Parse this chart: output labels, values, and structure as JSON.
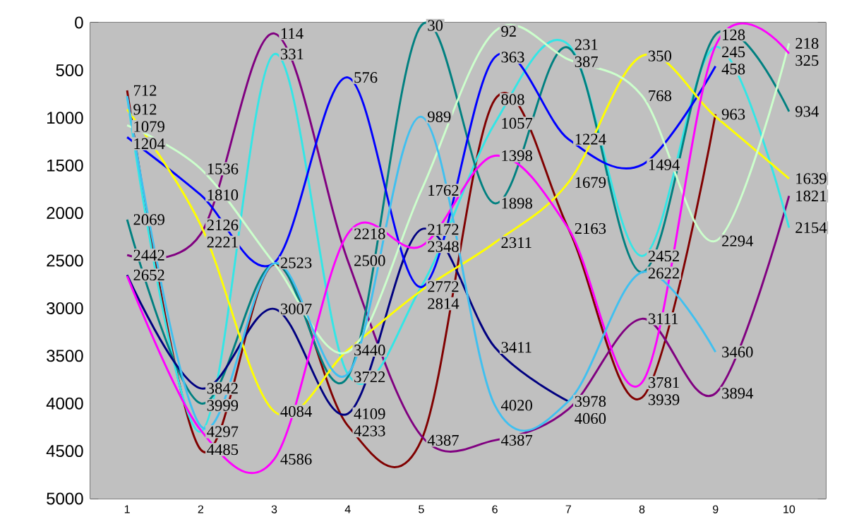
{
  "chart_data": {
    "type": "line",
    "categories": [
      "1",
      "2",
      "3",
      "4",
      "5",
      "6",
      "7",
      "8",
      "9",
      "10"
    ],
    "series": [
      {
        "color": "#800000",
        "values": [
          712,
          4485,
          2540,
          4233,
          4387,
          808,
          2163,
          3939,
          963,
          null
        ],
        "value_labels": [
          "712",
          "4485",
          null,
          "4233",
          "4387",
          "808",
          "2163",
          "3939",
          "963",
          null
        ]
      },
      {
        "color": "#800080",
        "values": [
          2442,
          2221,
          114,
          2500,
          4341,
          4387,
          4060,
          3111,
          3894,
          1821
        ],
        "value_labels": [
          "2442",
          "2221",
          "114",
          "2500",
          null,
          "4387",
          "4060",
          "3111",
          "3894",
          "1821"
        ]
      },
      {
        "color": "#33e6e6",
        "values": [
          778,
          4297,
          331,
          3691,
          2772,
          1057,
          231,
          2452,
          254,
          2154
        ],
        "value_labels": [
          null,
          "4297",
          "331",
          null,
          "2772",
          "1057",
          "231",
          "2452",
          null,
          "2154"
        ]
      },
      {
        "color": "#008080",
        "values": [
          2069,
          3999,
          2529,
          3722,
          30,
          1898,
          264,
          2622,
          128,
          934
        ],
        "value_labels": [
          "2069",
          "3999",
          null,
          "3722",
          "30",
          "1898",
          null,
          "2622",
          "128",
          "934"
        ]
      },
      {
        "color": "#000080",
        "values": [
          2652,
          3842,
          3007,
          4109,
          2172,
          3411,
          3978,
          null,
          null,
          null
        ],
        "value_labels": [
          "2652",
          "3842",
          "3007",
          "4109",
          "2172",
          "3411",
          "3978",
          null,
          null,
          null
        ]
      },
      {
        "color": "#0000ff",
        "values": [
          1204,
          1810,
          2523,
          576,
          2778,
          363,
          1224,
          1494,
          458,
          null
        ],
        "value_labels": [
          "1204",
          "1810",
          "2523",
          "576",
          null,
          "363",
          "1224",
          "1494",
          "458",
          null
        ]
      },
      {
        "color": "#ffff00",
        "values": [
          912,
          2126,
          4084,
          3440,
          2814,
          2311,
          1679,
          350,
          987,
          1639
        ],
        "value_labels": [
          "912",
          "2126",
          "4084",
          "3440",
          "2814",
          "2311",
          "1679",
          "350",
          null,
          "1639"
        ]
      },
      {
        "color": "#ccffcc",
        "values": [
          1079,
          1536,
          2529,
          3460,
          1762,
          92,
          387,
          768,
          2294,
          218
        ],
        "value_labels": [
          "1079",
          "1536",
          null,
          null,
          "1762",
          "92",
          "387",
          "768",
          "2294",
          "218"
        ]
      },
      {
        "color": "#ff00ff",
        "values": [
          2662,
          4280,
          4586,
          2218,
          2348,
          1398,
          2163,
          3781,
          245,
          325
        ],
        "value_labels": [
          null,
          null,
          "4586",
          "2218",
          "2348",
          "1398",
          null,
          "3781",
          "245",
          "325"
        ]
      },
      {
        "color": "#40c0f0",
        "values": [
          772,
          4237,
          2529,
          3691,
          989,
          4020,
          3978,
          2622,
          3460,
          null
        ],
        "value_labels": [
          null,
          null,
          null,
          null,
          "989",
          "4020",
          null,
          null,
          "3460",
          null
        ]
      }
    ],
    "ylim": [
      5000,
      0
    ],
    "yticks": [
      0,
      500,
      1000,
      1500,
      2000,
      2500,
      3000,
      3500,
      4000,
      4500,
      5000
    ],
    "grid": false,
    "marker": "none",
    "line_style": "solid"
  }
}
